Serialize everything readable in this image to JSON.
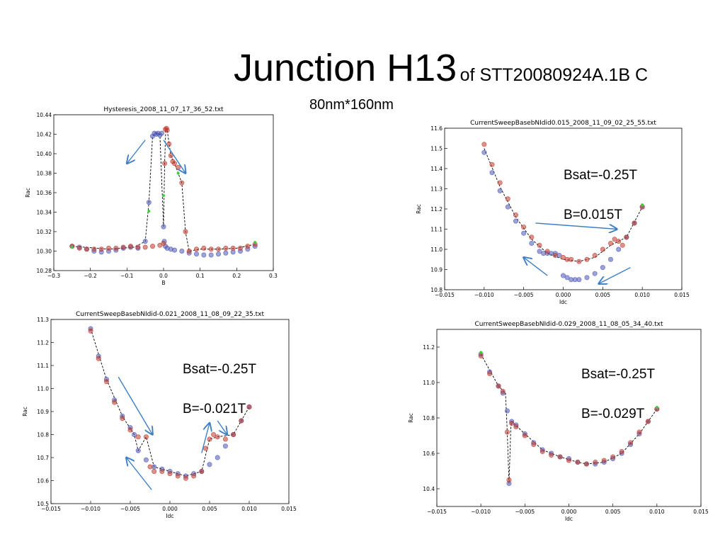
{
  "slide": {
    "title": "Junction H13",
    "title_suffix": "of STT20080924A.1B C",
    "subtitle": "80nm*160nm"
  },
  "annotations": [
    {
      "line1": "Bsat=-0.25T",
      "line2": "B=0.015T"
    },
    {
      "line1": "Bsat=-0.25T",
      "line2": "B=-0.021T"
    },
    {
      "line1": "Bsat=-0.25T",
      "line2": "B=-0.029T"
    }
  ],
  "colors": {
    "red_series": "#c0392b",
    "blue_series": "#4a55b5",
    "arrow": "#3d7fc4",
    "fit_line": "#000000"
  },
  "chart_data": [
    {
      "type": "scatter",
      "title": "Hysteresis_2008_11_07_17_36_52.txt",
      "xlabel": "B",
      "ylabel": "Rac",
      "xlim": [
        -0.3,
        0.3
      ],
      "ylim": [
        10.28,
        10.44
      ],
      "xticks": [
        "−0.3",
        "−0.2",
        "−0.1",
        "0.0",
        "0.1",
        "0.2",
        "0.3"
      ],
      "yticks": [
        "10.28",
        "10.30",
        "10.32",
        "10.34",
        "10.36",
        "10.38",
        "10.40",
        "10.42",
        "10.44"
      ],
      "xtick_values": [
        -0.3,
        -0.2,
        -0.1,
        0.0,
        0.1,
        0.2,
        0.3
      ],
      "ytick_values": [
        10.28,
        10.3,
        10.32,
        10.34,
        10.36,
        10.38,
        10.4,
        10.42,
        10.44
      ],
      "series": [
        {
          "color": "blue",
          "x": [
            -0.25,
            -0.23,
            -0.21,
            -0.19,
            -0.17,
            -0.15,
            -0.13,
            -0.11,
            -0.09,
            -0.07,
            -0.05,
            -0.04,
            -0.03,
            -0.025,
            -0.02,
            -0.015,
            -0.01,
            -0.005,
            0.0,
            0.002,
            0.005,
            0.01,
            0.02,
            0.03,
            0.05,
            0.07,
            0.09,
            0.11,
            0.13,
            0.15,
            0.17,
            0.19,
            0.21,
            0.23,
            0.25
          ],
          "y": [
            10.305,
            10.304,
            10.302,
            10.3,
            10.299,
            10.3,
            10.301,
            10.303,
            10.304,
            10.303,
            10.31,
            10.35,
            10.418,
            10.421,
            10.42,
            10.421,
            10.419,
            10.421,
            10.325,
            10.31,
            10.305,
            10.303,
            10.302,
            10.301,
            10.3,
            10.298,
            10.297,
            10.296,
            10.296,
            10.297,
            10.298,
            10.299,
            10.3,
            10.302,
            10.305
          ]
        },
        {
          "color": "red",
          "x": [
            -0.25,
            -0.23,
            -0.21,
            -0.19,
            -0.17,
            -0.15,
            -0.13,
            -0.11,
            -0.09,
            -0.07,
            -0.05,
            -0.03,
            -0.01,
            0.0,
            0.003,
            0.005,
            0.008,
            0.01,
            0.015,
            0.02,
            0.025,
            0.03,
            0.04,
            0.05,
            0.06,
            0.07,
            0.09,
            0.11,
            0.13,
            0.15,
            0.17,
            0.19,
            0.21,
            0.23,
            0.25
          ],
          "y": [
            10.305,
            10.303,
            10.302,
            10.302,
            10.302,
            10.303,
            10.303,
            10.304,
            10.305,
            10.304,
            10.304,
            10.305,
            10.306,
            10.308,
            10.39,
            10.425,
            10.426,
            10.424,
            10.41,
            10.398,
            10.392,
            10.39,
            10.386,
            10.37,
            10.32,
            10.3,
            10.302,
            10.303,
            10.302,
            10.302,
            10.303,
            10.303,
            10.303,
            10.305,
            10.307
          ]
        }
      ],
      "fit_line": {
        "x": [
          -0.25,
          -0.15,
          -0.08,
          -0.05,
          -0.04,
          -0.03,
          -0.02,
          -0.01,
          0.0,
          0.003,
          0.006,
          0.01,
          0.02,
          0.03,
          0.05,
          0.06,
          0.07,
          0.1,
          0.15,
          0.2,
          0.25
        ],
        "y": [
          10.305,
          10.302,
          10.304,
          10.31,
          10.35,
          10.418,
          10.421,
          10.42,
          10.325,
          10.39,
          10.426,
          10.424,
          10.398,
          10.39,
          10.37,
          10.32,
          10.3,
          10.302,
          10.302,
          10.303,
          10.307
        ]
      },
      "green_markers": {
        "x": [
          -0.25,
          -0.04,
          0.0,
          0.04,
          0.25
        ],
        "y": [
          10.304,
          10.341,
          10.357,
          10.38,
          10.309
        ]
      },
      "arrows": [
        {
          "x1": -0.05,
          "y1": 10.414,
          "x2": -0.1,
          "y2": 10.39
        },
        {
          "x1": 0.0,
          "y1": 10.414,
          "x2": 0.06,
          "y2": 10.38
        }
      ]
    },
    {
      "type": "scatter",
      "title": "CurrentSweepBasebNIdid0.015_2008_11_09_02_25_55.txt",
      "xlabel": "Idc",
      "ylabel": "Rac",
      "xlim": [
        -0.015,
        0.015
      ],
      "ylim": [
        10.8,
        11.6
      ],
      "xticks": [
        "−0.015",
        "−0.010",
        "−0.005",
        "0.000",
        "0.005",
        "0.010",
        "0.015"
      ],
      "yticks": [
        "10.8",
        "10.9",
        "11.0",
        "11.1",
        "11.2",
        "11.3",
        "11.4",
        "11.5",
        "11.6"
      ],
      "xtick_values": [
        -0.015,
        -0.01,
        -0.005,
        0.0,
        0.005,
        0.01,
        0.015
      ],
      "ytick_values": [
        10.8,
        10.9,
        11.0,
        11.1,
        11.2,
        11.3,
        11.4,
        11.5,
        11.6
      ],
      "series": [
        {
          "color": "blue",
          "x": [
            -0.01,
            -0.009,
            -0.008,
            -0.007,
            -0.006,
            -0.005,
            -0.004,
            -0.003,
            -0.0025,
            -0.002,
            -0.0015,
            -0.001,
            -0.0005,
            0.0,
            0.0005,
            0.001,
            0.0015,
            0.002,
            0.003,
            0.004,
            0.005,
            0.006,
            0.007,
            0.008,
            0.009,
            0.01
          ],
          "y": [
            11.48,
            11.38,
            11.29,
            11.21,
            11.14,
            11.08,
            11.03,
            10.99,
            10.98,
            10.98,
            10.98,
            10.98,
            10.97,
            10.87,
            10.86,
            10.85,
            10.85,
            10.85,
            10.86,
            10.88,
            10.91,
            10.95,
            11.0,
            11.06,
            11.13,
            11.21
          ]
        },
        {
          "color": "red",
          "x": [
            -0.01,
            -0.009,
            -0.008,
            -0.007,
            -0.006,
            -0.005,
            -0.004,
            -0.003,
            -0.002,
            -0.001,
            0.0,
            0.0005,
            0.001,
            0.002,
            0.003,
            0.004,
            0.005,
            0.006,
            0.0065,
            0.007,
            0.0075,
            0.008,
            0.009,
            0.01
          ],
          "y": [
            11.52,
            11.42,
            11.33,
            11.25,
            11.17,
            11.11,
            11.06,
            11.02,
            10.99,
            10.97,
            10.96,
            10.95,
            10.95,
            10.94,
            10.95,
            10.97,
            11.0,
            11.03,
            11.05,
            11.04,
            11.02,
            11.06,
            11.13,
            11.21
          ]
        }
      ],
      "fit_line": {
        "x": [
          -0.01,
          -0.008,
          -0.006,
          -0.004,
          -0.002,
          0.0,
          0.002,
          0.004,
          0.006,
          0.007,
          0.008,
          0.01
        ],
        "y": [
          11.5,
          11.31,
          11.16,
          11.05,
          10.98,
          10.95,
          10.94,
          10.96,
          11.02,
          11.04,
          11.06,
          11.21
        ]
      },
      "green_markers": {
        "x": [
          0.01
        ],
        "y": [
          11.22
        ]
      },
      "arrows": [
        {
          "x1": -0.0035,
          "y1": 11.13,
          "x2": 0.0068,
          "y2": 11.1
        },
        {
          "x1": -0.002,
          "y1": 10.87,
          "x2": -0.005,
          "y2": 10.96
        },
        {
          "x1": 0.0085,
          "y1": 10.91,
          "x2": 0.0045,
          "y2": 10.83
        }
      ]
    },
    {
      "type": "scatter",
      "title": "CurrentSweepBasebNIdid-0.021_2008_11_08_09_22_35.txt",
      "xlabel": "Idc",
      "ylabel": "Rac",
      "xlim": [
        -0.015,
        0.015
      ],
      "ylim": [
        10.5,
        11.3
      ],
      "xticks": [
        "−0.015",
        "−0.010",
        "−0.005",
        "0.000",
        "0.005",
        "0.010",
        "0.015"
      ],
      "yticks": [
        "10.5",
        "10.6",
        "10.7",
        "10.8",
        "10.9",
        "11.0",
        "11.1",
        "11.2",
        "11.3"
      ],
      "xtick_values": [
        -0.015,
        -0.01,
        -0.005,
        0.0,
        0.005,
        0.01,
        0.015
      ],
      "ytick_values": [
        10.5,
        10.6,
        10.7,
        10.8,
        10.9,
        11.0,
        11.1,
        11.2,
        11.3
      ],
      "series": [
        {
          "color": "blue",
          "x": [
            -0.01,
            -0.009,
            -0.008,
            -0.007,
            -0.006,
            -0.005,
            -0.0045,
            -0.004,
            -0.003,
            -0.002,
            -0.001,
            0.0,
            0.001,
            0.002,
            0.003,
            0.004,
            0.005,
            0.006,
            0.007,
            0.008,
            0.009,
            0.01
          ],
          "y": [
            11.26,
            11.14,
            11.04,
            10.95,
            10.88,
            10.83,
            10.8,
            10.73,
            10.69,
            10.66,
            10.65,
            10.64,
            10.63,
            10.62,
            10.63,
            10.64,
            10.67,
            10.7,
            10.75,
            10.8,
            10.86,
            10.92
          ]
        },
        {
          "color": "red",
          "x": [
            -0.01,
            -0.009,
            -0.008,
            -0.007,
            -0.006,
            -0.005,
            -0.004,
            -0.003,
            -0.0025,
            -0.002,
            -0.001,
            0.0,
            0.001,
            0.002,
            0.003,
            0.004,
            0.0045,
            0.005,
            0.0055,
            0.006,
            0.007,
            0.008,
            0.009,
            0.01
          ],
          "y": [
            11.25,
            11.13,
            11.03,
            10.94,
            10.87,
            10.82,
            10.79,
            10.79,
            10.66,
            10.64,
            10.64,
            10.63,
            10.62,
            10.61,
            10.62,
            10.64,
            10.74,
            10.78,
            10.8,
            10.79,
            10.78,
            10.8,
            10.86,
            10.92
          ]
        }
      ],
      "fit_line": {
        "x": [
          -0.01,
          -0.008,
          -0.006,
          -0.0045,
          -0.004,
          -0.003,
          -0.002,
          0.0,
          0.002,
          0.004,
          0.005,
          0.006,
          0.008,
          0.01
        ],
        "y": [
          11.26,
          11.04,
          10.88,
          10.8,
          10.73,
          10.79,
          10.66,
          10.64,
          10.62,
          10.64,
          10.78,
          10.79,
          10.8,
          10.92
        ]
      },
      "green_markers": {
        "x": [],
        "y": []
      },
      "arrows": [
        {
          "x1": -0.0065,
          "y1": 11.05,
          "x2": -0.0022,
          "y2": 10.8
        },
        {
          "x1": -0.0023,
          "y1": 10.56,
          "x2": -0.0055,
          "y2": 10.7
        },
        {
          "x1": 0.004,
          "y1": 10.72,
          "x2": 0.005,
          "y2": 10.85
        },
        {
          "x1": 0.006,
          "y1": 10.86,
          "x2": 0.0072,
          "y2": 10.8
        }
      ]
    },
    {
      "type": "scatter",
      "title": "CurrentSweepBasebNIdid-0.029_2008_11_08_05_34_40.txt",
      "xlabel": "Idc",
      "ylabel": "Rac",
      "xlim": [
        -0.015,
        0.015
      ],
      "ylim": [
        10.3,
        11.3
      ],
      "xticks": [
        "−0.015",
        "−0.010",
        "−0.005",
        "0.000",
        "0.005",
        "0.010",
        "0.015"
      ],
      "yticks": [
        "10.4",
        "10.6",
        "10.8",
        "11.0",
        "11.2"
      ],
      "xtick_values": [
        -0.015,
        -0.01,
        -0.005,
        0.0,
        0.005,
        0.01,
        0.015
      ],
      "ytick_values": [
        10.4,
        10.6,
        10.8,
        11.0,
        11.2
      ],
      "series": [
        {
          "color": "blue",
          "x": [
            -0.01,
            -0.009,
            -0.008,
            -0.0075,
            -0.007,
            -0.0068,
            -0.0065,
            -0.006,
            -0.005,
            -0.004,
            -0.003,
            -0.002,
            -0.001,
            0.0,
            0.001,
            0.002,
            0.003,
            0.004,
            0.005,
            0.006,
            0.007,
            0.008,
            0.009,
            0.01
          ],
          "y": [
            11.16,
            11.06,
            10.98,
            10.94,
            10.84,
            10.43,
            10.78,
            10.76,
            10.71,
            10.66,
            10.62,
            10.6,
            10.58,
            10.57,
            10.55,
            10.54,
            10.54,
            10.55,
            10.57,
            10.6,
            10.65,
            10.71,
            10.78,
            10.85
          ]
        },
        {
          "color": "red",
          "x": [
            -0.01,
            -0.009,
            -0.008,
            -0.0075,
            -0.007,
            -0.0068,
            -0.0065,
            -0.006,
            -0.005,
            -0.004,
            -0.003,
            -0.002,
            -0.001,
            0.0,
            0.001,
            0.002,
            0.003,
            0.004,
            0.005,
            0.006,
            0.007,
            0.008,
            0.009,
            0.01
          ],
          "y": [
            11.15,
            11.05,
            10.98,
            10.95,
            10.72,
            10.45,
            10.77,
            10.75,
            10.7,
            10.65,
            10.61,
            10.59,
            10.58,
            10.56,
            10.55,
            10.54,
            10.55,
            10.56,
            10.58,
            10.61,
            10.66,
            10.72,
            10.78,
            10.85
          ]
        }
      ],
      "fit_line": {
        "x": [
          -0.01,
          -0.008,
          -0.0072,
          -0.007,
          -0.0068,
          -0.0066,
          -0.0065,
          -0.005,
          -0.003,
          -0.001,
          0.001,
          0.002,
          0.004,
          0.006,
          0.008,
          0.01
        ],
        "y": [
          11.16,
          10.98,
          10.94,
          10.72,
          10.43,
          10.74,
          10.78,
          10.71,
          10.62,
          10.58,
          10.55,
          10.54,
          10.55,
          10.6,
          10.71,
          10.85
        ]
      },
      "green_markers": {
        "x": [
          -0.01,
          0.01
        ],
        "y": [
          11.17,
          10.86
        ]
      },
      "arrows": []
    }
  ]
}
